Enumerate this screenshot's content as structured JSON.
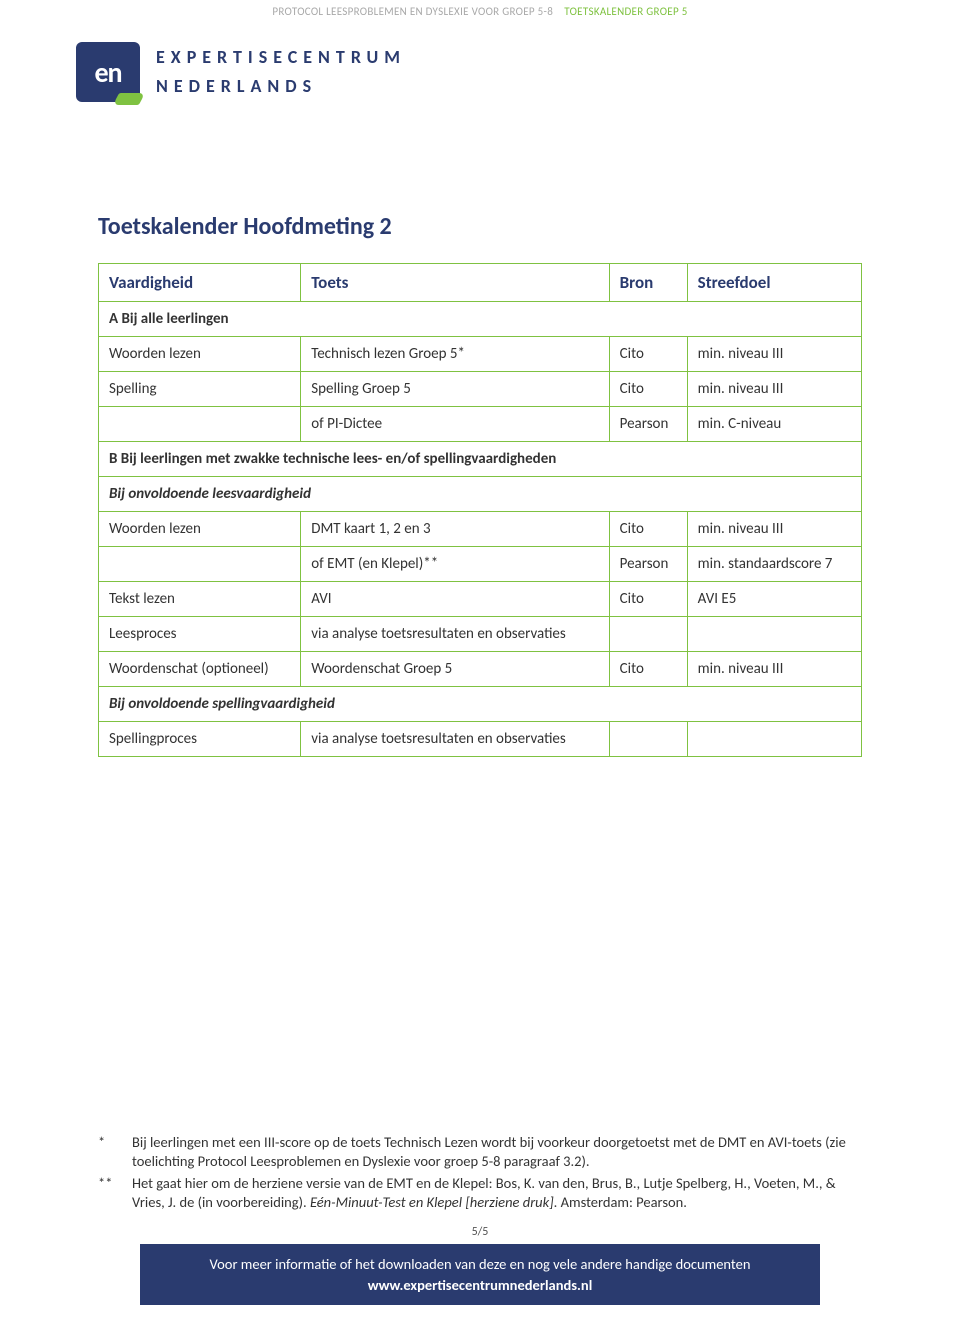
{
  "header": {
    "left": "PROTOCOL LEESPROBLEMEN EN DYSLEXIE VOOR GROEP 5-8",
    "right": "TOETSKALENDER GROEP 5"
  },
  "logo": {
    "mark": "en",
    "line1": "EXPERTISECENTRUM",
    "line2": "NEDERLANDS"
  },
  "title": "Toetskalender Hoofdmeting 2",
  "table": {
    "headers": {
      "c1": "Vaardigheid",
      "c2": "Toets",
      "c3": "Bron",
      "c4": "Streefdoel"
    },
    "sectionA": "A   Bij alle leerlingen",
    "rowsA": [
      {
        "c1": "Woorden lezen",
        "c2": "Technisch lezen Groep 5*",
        "c3": "Cito",
        "c4": "min. niveau III"
      },
      {
        "c1": "Spelling",
        "c2": "Spelling Groep 5",
        "c3": "Cito",
        "c4": "min. niveau III"
      },
      {
        "c1": "",
        "c2": "of PI-Dictee",
        "c3": "Pearson",
        "c4": "min. C-niveau"
      }
    ],
    "sectionB": "B   Bij leerlingen met zwakke technische lees- en/of spellingvaardigheden",
    "subB1": "Bij onvoldoende leesvaardigheid",
    "rowsB1": [
      {
        "c1": "Woorden lezen",
        "c2": "DMT kaart 1, 2 en 3",
        "c3": "Cito",
        "c4": "min. niveau III"
      },
      {
        "c1": "",
        "c2": "of EMT (en Klepel)**",
        "c3": "Pearson",
        "c4": "min. standaardscore 7"
      },
      {
        "c1": "Tekst lezen",
        "c2": "AVI",
        "c3": "Cito",
        "c4": "AVI E5"
      },
      {
        "c1": "Leesproces",
        "c2": "via analyse toetsresultaten en observaties",
        "c3": "",
        "c4": ""
      },
      {
        "c1": "Woordenschat (optioneel)",
        "c2": "Woordenschat Groep 5",
        "c3": "Cito",
        "c4": "min. niveau III"
      }
    ],
    "subB2": "Bij onvoldoende spellingvaardigheid",
    "rowsB2": [
      {
        "c1": "Spellingproces",
        "c2": "via analyse toetsresultaten en observaties",
        "c3": "",
        "c4": ""
      }
    ]
  },
  "footnotes": {
    "m1": "*",
    "t1": "Bij leerlingen met een III-score op de toets Technisch Lezen wordt bij voorkeur doorgetoetst met de DMT en AVI-toets (zie toelichting Protocol Leesproblemen en Dyslexie voor groep 5-8 paragraaf 3.2).",
    "m2": "**",
    "t2a": "Het gaat hier om de herziene versie van de EMT en de Klepel: Bos, K. van den, Brus, B., Lutje Spelberg, H., Voeten, M., & Vries, J. de (in voorbereiding). ",
    "t2b": "Eén-Minuut-Test en Klepel [herziene druk]",
    "t2c": ". Amsterdam: Pearson."
  },
  "pageNum": "5/5",
  "footer": {
    "line1": "Voor meer informatie of het downloaden van deze en nog vele andere handige documenten",
    "url": "www.expertisecentrumnederlands.nl"
  }
}
